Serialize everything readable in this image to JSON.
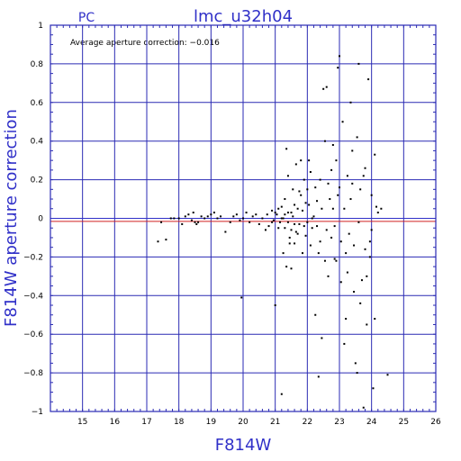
{
  "chart_data": {
    "type": "scatter",
    "title": "lmc_u32h04",
    "subtitle": "PC",
    "xlabel": "F814W",
    "ylabel": "F814W aperture correction",
    "annotation": "Average aperture correction: −0.016",
    "xlim": [
      14,
      26
    ],
    "ylim": [
      -1,
      1
    ],
    "xticks": [
      "15",
      "16",
      "17",
      "18",
      "19",
      "20",
      "21",
      "22",
      "23",
      "24",
      "25",
      "26"
    ],
    "yticks": [
      "−1",
      "−0.8",
      "−0.6",
      "−0.4",
      "−0.2",
      "0",
      "0.2",
      "0.4",
      "0.6",
      "0.8",
      "1"
    ],
    "xtick_values": [
      15,
      16,
      17,
      18,
      19,
      20,
      21,
      22,
      23,
      24,
      25,
      26
    ],
    "ytick_values": [
      -1,
      -0.8,
      -0.6,
      -0.4,
      -0.2,
      0,
      0.2,
      0.4,
      0.6,
      0.8,
      1
    ],
    "reference_lines": [
      {
        "y": 0,
        "color": "#3030c8"
      },
      {
        "y": -0.016,
        "color": "#d02020"
      }
    ],
    "grid": true,
    "colors": {
      "frame": "#2a2ab4",
      "text": "#3030c8",
      "points": "#000000"
    },
    "points": [
      [
        17.35,
        -0.12
      ],
      [
        17.45,
        -0.02
      ],
      [
        17.6,
        -0.11
      ],
      [
        17.75,
        0.0
      ],
      [
        17.85,
        0.0
      ],
      [
        18.0,
        0.0
      ],
      [
        18.1,
        -0.03
      ],
      [
        18.2,
        0.01
      ],
      [
        18.3,
        0.02
      ],
      [
        18.4,
        -0.01
      ],
      [
        18.45,
        0.03
      ],
      [
        18.5,
        -0.02
      ],
      [
        18.55,
        -0.03
      ],
      [
        18.6,
        -0.02
      ],
      [
        18.7,
        0.01
      ],
      [
        18.8,
        0.0
      ],
      [
        18.9,
        0.01
      ],
      [
        19.0,
        0.02
      ],
      [
        19.1,
        0.03
      ],
      [
        19.2,
        0.0
      ],
      [
        19.3,
        0.01
      ],
      [
        19.45,
        -0.07
      ],
      [
        19.6,
        -0.02
      ],
      [
        19.7,
        0.01
      ],
      [
        19.8,
        0.02
      ],
      [
        19.9,
        -0.01
      ],
      [
        19.95,
        -0.41
      ],
      [
        20.0,
        0.0
      ],
      [
        20.1,
        0.03
      ],
      [
        20.2,
        -0.02
      ],
      [
        20.3,
        0.01
      ],
      [
        20.4,
        0.02
      ],
      [
        20.5,
        -0.03
      ],
      [
        20.6,
        0.0
      ],
      [
        20.7,
        -0.06
      ],
      [
        20.75,
        0.02
      ],
      [
        20.8,
        -0.04
      ],
      [
        20.9,
        0.04
      ],
      [
        20.95,
        -0.01
      ],
      [
        21.0,
        -0.45
      ],
      [
        21.05,
        0.02
      ],
      [
        21.1,
        0.05
      ],
      [
        21.15,
        -0.02
      ],
      [
        21.2,
        0.06
      ],
      [
        21.25,
        0.0
      ],
      [
        21.3,
        -0.05
      ],
      [
        21.35,
        0.36
      ],
      [
        21.4,
        0.03
      ],
      [
        21.45,
        -0.1
      ],
      [
        21.5,
        -0.26
      ],
      [
        21.55,
        0.15
      ],
      [
        21.6,
        -0.13
      ],
      [
        21.65,
        0.28
      ],
      [
        21.7,
        0.05
      ],
      [
        21.75,
        -0.03
      ],
      [
        21.8,
        0.12
      ],
      [
        21.85,
        -0.18
      ],
      [
        21.9,
        0.2
      ],
      [
        21.95,
        0.08
      ],
      [
        22.0,
        -0.02
      ],
      [
        22.05,
        0.3
      ],
      [
        22.1,
        0.24
      ],
      [
        22.15,
        0.0
      ],
      [
        21.2,
        -0.91
      ],
      [
        21.3,
        0.1
      ],
      [
        21.4,
        0.22
      ],
      [
        21.5,
        -0.06
      ],
      [
        21.6,
        0.07
      ],
      [
        21.7,
        -0.08
      ],
      [
        21.8,
        0.3
      ],
      [
        21.9,
        -0.04
      ],
      [
        22.0,
        0.15
      ],
      [
        22.1,
        -0.14
      ],
      [
        22.2,
        0.01
      ],
      [
        22.25,
        -0.5
      ],
      [
        22.3,
        0.09
      ],
      [
        22.35,
        -0.82
      ],
      [
        22.4,
        0.2
      ],
      [
        22.45,
        -0.62
      ],
      [
        22.5,
        0.67
      ],
      [
        22.55,
        0.4
      ],
      [
        22.6,
        0.68
      ],
      [
        22.65,
        0.18
      ],
      [
        22.7,
        0.1
      ],
      [
        22.75,
        -0.1
      ],
      [
        22.8,
        0.38
      ],
      [
        22.85,
        -0.21
      ],
      [
        22.9,
        0.3
      ],
      [
        22.95,
        0.78
      ],
      [
        23.0,
        0.84
      ],
      [
        23.05,
        -0.33
      ],
      [
        23.1,
        0.5
      ],
      [
        23.15,
        0.05
      ],
      [
        23.2,
        -0.52
      ],
      [
        23.25,
        0.22
      ],
      [
        23.3,
        -0.08
      ],
      [
        23.35,
        0.6
      ],
      [
        23.4,
        0.35
      ],
      [
        23.45,
        -0.14
      ],
      [
        23.5,
        -0.75
      ],
      [
        23.55,
        0.42
      ],
      [
        23.6,
        0.8
      ],
      [
        23.65,
        0.15
      ],
      [
        23.7,
        -0.32
      ],
      [
        23.75,
        -0.98
      ],
      [
        23.8,
        0.26
      ],
      [
        23.85,
        -0.55
      ],
      [
        23.9,
        0.72
      ],
      [
        23.95,
        -0.12
      ],
      [
        24.0,
        0.12
      ],
      [
        24.05,
        -0.88
      ],
      [
        24.1,
        -0.52
      ],
      [
        24.15,
        0.06
      ],
      [
        24.2,
        0.03
      ],
      [
        24.3,
        0.05
      ],
      [
        24.5,
        -0.81
      ],
      [
        22.3,
        -0.04
      ],
      [
        22.4,
        -0.12
      ],
      [
        22.6,
        -0.06
      ],
      [
        22.8,
        0.05
      ],
      [
        22.9,
        -0.22
      ],
      [
        23.0,
        0.16
      ],
      [
        23.2,
        -0.18
      ],
      [
        23.4,
        0.18
      ],
      [
        23.6,
        -0.02
      ],
      [
        23.8,
        -0.16
      ],
      [
        24.0,
        -0.06
      ],
      [
        24.1,
        0.33
      ],
      [
        21.25,
        -0.18
      ],
      [
        21.35,
        -0.25
      ],
      [
        21.45,
        -0.13
      ],
      [
        21.55,
        0.01
      ],
      [
        21.65,
        -0.07
      ],
      [
        21.75,
        0.14
      ],
      [
        21.85,
        0.04
      ],
      [
        21.95,
        -0.09
      ],
      [
        22.05,
        0.07
      ],
      [
        22.15,
        -0.05
      ],
      [
        22.25,
        0.16
      ],
      [
        22.35,
        -0.18
      ],
      [
        22.45,
        0.05
      ],
      [
        22.55,
        -0.22
      ],
      [
        22.65,
        -0.3
      ],
      [
        22.75,
        0.25
      ],
      [
        22.85,
        -0.04
      ],
      [
        22.95,
        0.12
      ],
      [
        23.05,
        -0.12
      ],
      [
        23.15,
        -0.65
      ],
      [
        23.25,
        -0.28
      ],
      [
        23.35,
        0.1
      ],
      [
        23.45,
        -0.38
      ],
      [
        23.55,
        -0.8
      ],
      [
        23.65,
        -0.44
      ],
      [
        23.75,
        0.22
      ],
      [
        23.85,
        -0.3
      ],
      [
        23.95,
        -0.2
      ],
      [
        21.1,
        -0.05
      ],
      [
        21.0,
        0.03
      ],
      [
        20.9,
        -0.02
      ],
      [
        21.2,
        0.0
      ],
      [
        21.3,
        0.02
      ],
      [
        21.4,
        -0.02
      ],
      [
        21.5,
        0.03
      ],
      [
        21.6,
        -0.03
      ]
    ]
  }
}
